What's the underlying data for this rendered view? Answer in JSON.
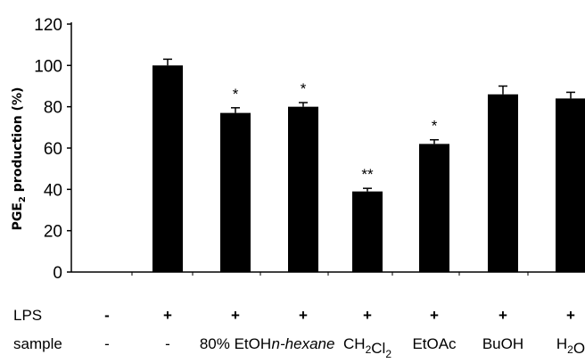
{
  "chart_data": {
    "type": "bar",
    "ylabel": {
      "pre": "PGE",
      "sub": "2",
      "post": " production (%)"
    },
    "ylim": [
      0,
      120
    ],
    "yticks": [
      0,
      20,
      40,
      60,
      80,
      100,
      120
    ],
    "color": "#000000",
    "categories": [
      {
        "lps": "-",
        "sample": [
          {
            "t": "-"
          }
        ]
      },
      {
        "lps": "+",
        "sample": [
          {
            "t": "-"
          }
        ]
      },
      {
        "lps": "+",
        "sample": [
          {
            "t": "80% EtOH"
          }
        ]
      },
      {
        "lps": "+",
        "sample": [
          {
            "t": "n-hexane",
            "italic": true
          }
        ]
      },
      {
        "lps": "+",
        "sample": [
          {
            "t": "CH"
          },
          {
            "t": "2",
            "sub": true
          },
          {
            "t": "Cl"
          },
          {
            "t": "2",
            "sub": true
          }
        ]
      },
      {
        "lps": "+",
        "sample": [
          {
            "t": "EtOAc"
          }
        ]
      },
      {
        "lps": "+",
        "sample": [
          {
            "t": "BuOH"
          }
        ]
      },
      {
        "lps": "+",
        "sample": [
          {
            "t": "H"
          },
          {
            "t": "2",
            "sub": true
          },
          {
            "t": "O"
          }
        ]
      }
    ],
    "values": [
      0,
      100,
      77,
      80,
      39,
      62,
      86,
      84
    ],
    "errors": [
      0,
      3,
      2.5,
      2,
      1.5,
      2,
      4,
      3
    ],
    "annotations": [
      "",
      "",
      "*",
      "*",
      "**",
      "*",
      "",
      ""
    ],
    "row_labels": {
      "lps": "LPS",
      "sample": "sample"
    }
  }
}
